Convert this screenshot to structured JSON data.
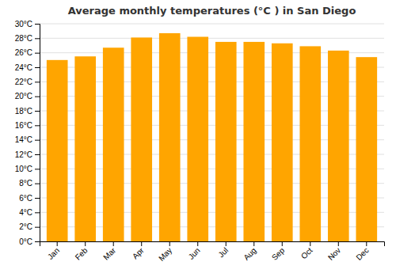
{
  "chart_data": {
    "type": "bar",
    "title": "Average monthly temperatures (°C ) in San Diego",
    "categories": [
      "Jan",
      "Feb",
      "Mar",
      "Apr",
      "May",
      "Jun",
      "Jul",
      "Aug",
      "Sep",
      "Oct",
      "Nov",
      "Dec"
    ],
    "values": [
      25.0,
      25.5,
      26.7,
      28.1,
      28.7,
      28.2,
      27.5,
      27.5,
      27.3,
      26.9,
      26.3,
      25.4
    ],
    "color": "#FFA500",
    "ylim": [
      0,
      30
    ],
    "yticks": [
      {
        "value": 0,
        "label": "0°C"
      },
      {
        "value": 2,
        "label": "2°C"
      },
      {
        "value": 4,
        "label": "4°C"
      },
      {
        "value": 6,
        "label": "6°C"
      },
      {
        "value": 8,
        "label": "8°C"
      },
      {
        "value": 10,
        "label": "10°C"
      },
      {
        "value": 12,
        "label": "12°C"
      },
      {
        "value": 14,
        "label": "14°C"
      },
      {
        "value": 16,
        "label": "16°C"
      },
      {
        "value": 18,
        "label": "18°C"
      },
      {
        "value": 20,
        "label": "20°C"
      },
      {
        "value": 22,
        "label": "22°C"
      },
      {
        "value": 24,
        "label": "24°C"
      },
      {
        "value": 26,
        "label": "26°C"
      },
      {
        "value": 28,
        "label": "28°C"
      },
      {
        "value": 30,
        "label": "30°C"
      }
    ],
    "grid": true
  }
}
